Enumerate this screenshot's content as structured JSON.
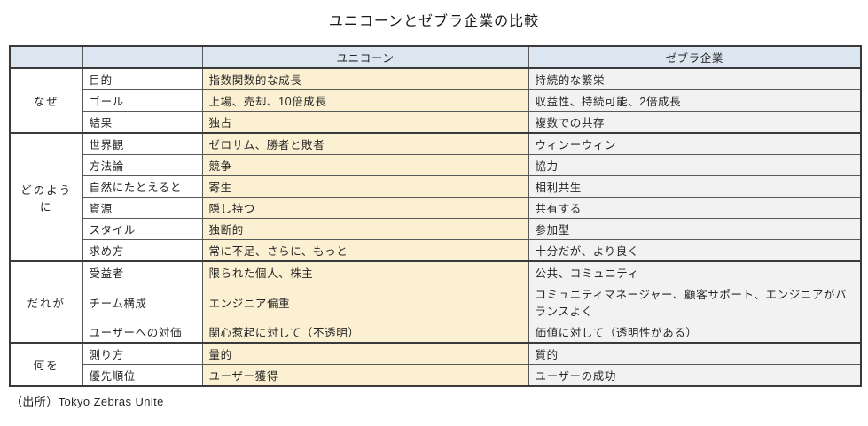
{
  "title": "ユニコーンとゼブラ企業の比較",
  "source_note": "（出所）Tokyo Zebras Unite",
  "colors": {
    "header_bg": "#dce6f1",
    "unicorn_col_bg": "#fcf0d2",
    "zebra_col_bg": "#f2f2f2",
    "border": "#3a3a3a"
  },
  "table": {
    "headers": {
      "unicorn": "ユニコーン",
      "zebra": "ゼブラ企業"
    },
    "groups": [
      {
        "label": "なぜ",
        "rows": [
          {
            "label": "目的",
            "unicorn": "指数関数的な成長",
            "zebra": "持続的な繁栄"
          },
          {
            "label": "ゴール",
            "unicorn": "上場、売却、10倍成長",
            "zebra": "収益性、持続可能、2倍成長"
          },
          {
            "label": "結果",
            "unicorn": "独占",
            "zebra": "複数での共存"
          }
        ]
      },
      {
        "label": "どのように",
        "rows": [
          {
            "label": "世界観",
            "unicorn": "ゼロサム、勝者と敗者",
            "zebra": "ウィンーウィン"
          },
          {
            "label": "方法論",
            "unicorn": "競争",
            "zebra": "協力"
          },
          {
            "label": "自然にたとえると",
            "unicorn": "寄生",
            "zebra": "相利共生"
          },
          {
            "label": "資源",
            "unicorn": "隠し持つ",
            "zebra": "共有する"
          },
          {
            "label": "スタイル",
            "unicorn": "独断的",
            "zebra": "参加型"
          },
          {
            "label": "求め方",
            "unicorn": "常に不足、さらに、もっと",
            "zebra": "十分だが、より良く"
          }
        ]
      },
      {
        "label": "だれが",
        "rows": [
          {
            "label": "受益者",
            "unicorn": "限られた個人、株主",
            "zebra": "公共、コミュニティ"
          },
          {
            "label": "チーム構成",
            "unicorn": "エンジニア偏重",
            "zebra": "コミュニティマネージャー、顧客サポート、エンジニアがバランスよく"
          },
          {
            "label": "ユーザーへの対価",
            "unicorn": "関心惹起に対して（不透明）",
            "zebra": "価値に対して（透明性がある）"
          }
        ]
      },
      {
        "label": "何を",
        "rows": [
          {
            "label": "測り方",
            "unicorn": "量的",
            "zebra": "質的"
          },
          {
            "label": "優先順位",
            "unicorn": "ユーザー獲得",
            "zebra": "ユーザーの成功"
          }
        ]
      }
    ]
  }
}
